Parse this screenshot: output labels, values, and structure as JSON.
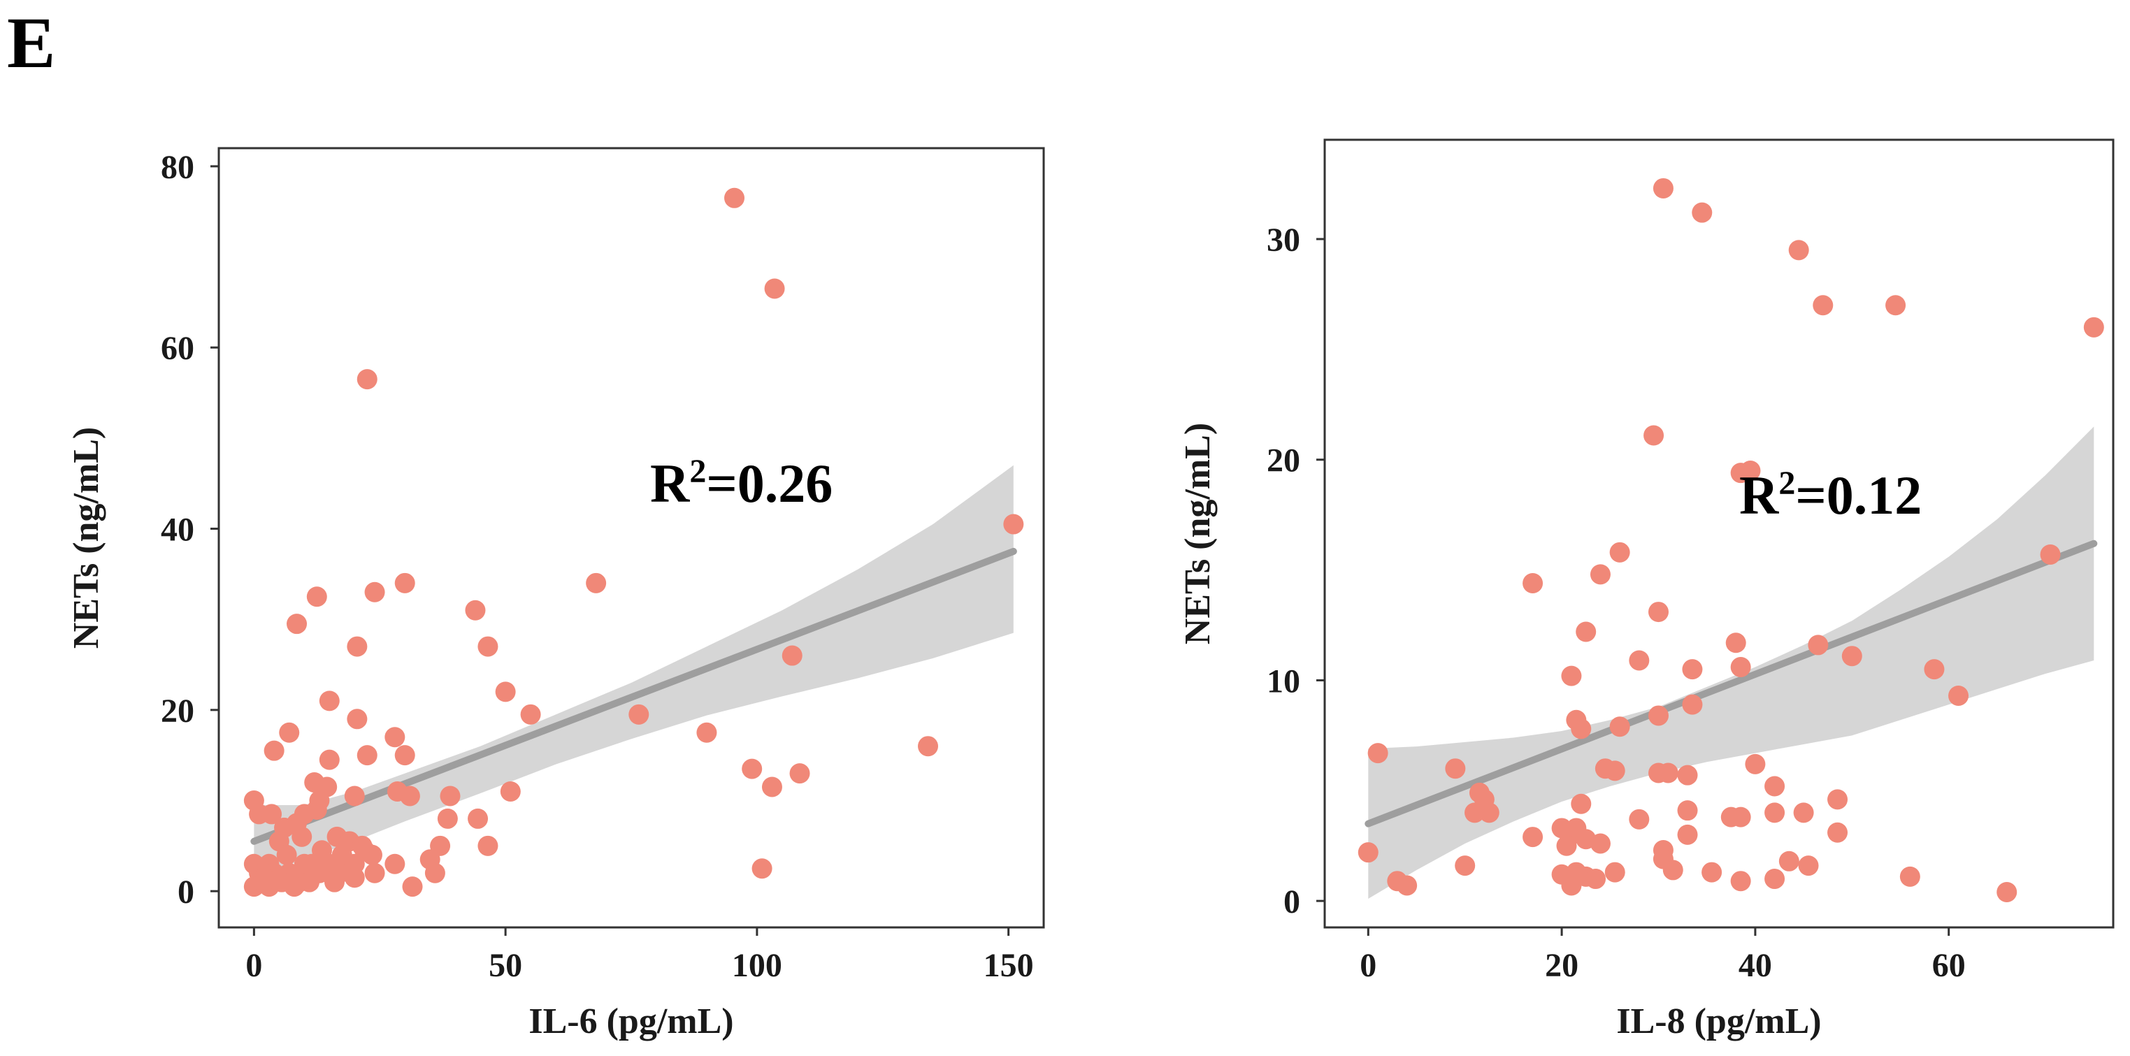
{
  "panel_label": "E",
  "colors": {
    "point": "#f08878",
    "fit": "#9e9e9e",
    "band": "#d6d6d6",
    "frame": "#333333"
  },
  "chart_data": [
    {
      "type": "scatter",
      "id": "il6",
      "title": "",
      "xlabel": "IL-6 (pg/mL)",
      "ylabel": "NETs (ng/mL)",
      "xlim": [
        -7,
        157
      ],
      "ylim": [
        -4,
        82
      ],
      "xticks": [
        0,
        50,
        100,
        150
      ],
      "yticks": [
        0,
        20,
        40,
        60,
        80
      ],
      "annotation": {
        "base": "R",
        "sup": "2",
        "rest": "=0.26"
      },
      "fit": {
        "x0": 0,
        "y0": 5.5,
        "x1": 151,
        "y1": 37.5
      },
      "band": {
        "x": [
          0,
          10,
          20,
          30,
          45,
          60,
          75,
          90,
          105,
          120,
          135,
          151
        ],
        "upper": [
          9.5,
          9.5,
          11,
          13,
          16,
          19.5,
          23,
          27,
          31,
          35.5,
          40.5,
          47
        ],
        "lower": [
          1.5,
          3.5,
          5.5,
          7.7,
          10.8,
          14,
          16.8,
          19.4,
          21.5,
          23.5,
          25.7,
          28.5
        ]
      },
      "points": [
        [
          95.5,
          76.5
        ],
        [
          103.5,
          66.5
        ],
        [
          22.5,
          56.5
        ],
        [
          151,
          40.5
        ],
        [
          68,
          34
        ],
        [
          30,
          34
        ],
        [
          12.5,
          32.5
        ],
        [
          24,
          33
        ],
        [
          44,
          31
        ],
        [
          8.5,
          29.5
        ],
        [
          20.5,
          27
        ],
        [
          46.5,
          27
        ],
        [
          107,
          26
        ],
        [
          15,
          21
        ],
        [
          50,
          22
        ],
        [
          20.5,
          19
        ],
        [
          55,
          19.5
        ],
        [
          76.5,
          19.5
        ],
        [
          90,
          17.5
        ],
        [
          7,
          17.5
        ],
        [
          4,
          15.5
        ],
        [
          28,
          17
        ],
        [
          22.5,
          15
        ],
        [
          30,
          15
        ],
        [
          15,
          14.5
        ],
        [
          134,
          16
        ],
        [
          99,
          13.5
        ],
        [
          108.5,
          13
        ],
        [
          103,
          11.5
        ],
        [
          12,
          12
        ],
        [
          14.5,
          11.5
        ],
        [
          51,
          11
        ],
        [
          39,
          10.5
        ],
        [
          31,
          10.5
        ],
        [
          20,
          10.5
        ],
        [
          0,
          10
        ],
        [
          13,
          10
        ],
        [
          28.5,
          11
        ],
        [
          38.5,
          8
        ],
        [
          44.5,
          8
        ],
        [
          1,
          8.5
        ],
        [
          3.5,
          8.5
        ],
        [
          10,
          8.5
        ],
        [
          12.5,
          9
        ],
        [
          8.5,
          7.5
        ],
        [
          16.5,
          6
        ],
        [
          9.5,
          6
        ],
        [
          5,
          5.5
        ],
        [
          19,
          5.5
        ],
        [
          21.5,
          5
        ],
        [
          46.5,
          5
        ],
        [
          37,
          5
        ],
        [
          13.5,
          4.5
        ],
        [
          17.5,
          4
        ],
        [
          22,
          4.5
        ],
        [
          23.5,
          4
        ],
        [
          6.5,
          4
        ],
        [
          0,
          3
        ],
        [
          3,
          3
        ],
        [
          10,
          3
        ],
        [
          11.5,
          3
        ],
        [
          15,
          3
        ],
        [
          20,
          3
        ],
        [
          28,
          3
        ],
        [
          35,
          3.5
        ],
        [
          101,
          2.5
        ],
        [
          1,
          2
        ],
        [
          4,
          2
        ],
        [
          7,
          2
        ],
        [
          13,
          2
        ],
        [
          17,
          2
        ],
        [
          20,
          1.5
        ],
        [
          24,
          2
        ],
        [
          36,
          2
        ],
        [
          2,
          1.5
        ],
        [
          5.5,
          1
        ],
        [
          9,
          1
        ],
        [
          11,
          1
        ],
        [
          16,
          1
        ],
        [
          0,
          0.5
        ],
        [
          3,
          0.5
        ],
        [
          8,
          0.5
        ],
        [
          31.5,
          0.5
        ],
        [
          6,
          7
        ],
        [
          2,
          1
        ]
      ]
    },
    {
      "type": "scatter",
      "id": "il8",
      "title": "",
      "xlabel": "IL-8 (pg/mL)",
      "ylabel": "NETs (ng/mL)",
      "xlim": [
        -4.5,
        77
      ],
      "ylim": [
        -1.2,
        34.5
      ],
      "xticks": [
        0,
        20,
        40,
        60
      ],
      "yticks": [
        0,
        10,
        20,
        30
      ],
      "annotation": {
        "base": "R",
        "sup": "2",
        "rest": "=0.12"
      },
      "fit": {
        "x0": 0,
        "y0": 3.5,
        "x1": 75,
        "y1": 16.2
      },
      "band": {
        "x": [
          0,
          5,
          10,
          15,
          20,
          25,
          30,
          35,
          40,
          45,
          50,
          55,
          60,
          65,
          70,
          75
        ],
        "upper": [
          6.9,
          7.0,
          7.2,
          7.4,
          7.7,
          8.2,
          8.8,
          9.7,
          10.6,
          11.6,
          12.7,
          14.1,
          15.6,
          17.3,
          19.3,
          21.5
        ],
        "lower": [
          0.1,
          1.4,
          2.6,
          3.6,
          4.5,
          5.2,
          5.8,
          6.3,
          6.7,
          7.1,
          7.5,
          8.2,
          8.9,
          9.6,
          10.3,
          10.9
        ]
      },
      "points": [
        [
          30.5,
          32.3
        ],
        [
          34.5,
          31.2
        ],
        [
          44.5,
          29.5
        ],
        [
          47,
          27
        ],
        [
          54.5,
          27
        ],
        [
          75,
          26
        ],
        [
          29.5,
          21.1
        ],
        [
          39.5,
          19.5
        ],
        [
          38.5,
          19.4
        ],
        [
          17,
          14.4
        ],
        [
          24,
          14.8
        ],
        [
          26,
          15.8
        ],
        [
          70.5,
          15.7
        ],
        [
          30,
          13.1
        ],
        [
          22.5,
          12.2
        ],
        [
          38,
          11.7
        ],
        [
          46.5,
          11.6
        ],
        [
          50,
          11.1
        ],
        [
          28,
          10.9
        ],
        [
          33.5,
          10.5
        ],
        [
          38.5,
          10.6
        ],
        [
          58.5,
          10.5
        ],
        [
          21,
          10.2
        ],
        [
          61,
          9.3
        ],
        [
          33.5,
          8.9
        ],
        [
          30,
          8.4
        ],
        [
          21.5,
          8.2
        ],
        [
          22,
          7.8
        ],
        [
          26,
          7.9
        ],
        [
          1,
          6.7
        ],
        [
          24.5,
          6.0
        ],
        [
          25.5,
          5.9
        ],
        [
          30,
          5.8
        ],
        [
          31,
          5.8
        ],
        [
          33,
          5.7
        ],
        [
          40,
          6.2
        ],
        [
          9,
          6
        ],
        [
          42,
          5.2
        ],
        [
          11.5,
          4.9
        ],
        [
          22,
          4.4
        ],
        [
          12,
          4.6
        ],
        [
          11,
          4.0
        ],
        [
          12.5,
          4.0
        ],
        [
          42,
          4.0
        ],
        [
          45,
          4.0
        ],
        [
          33,
          4.1
        ],
        [
          28,
          3.7
        ],
        [
          37.5,
          3.8
        ],
        [
          38.5,
          3.8
        ],
        [
          48.5,
          4.6
        ],
        [
          20,
          3.3
        ],
        [
          21,
          3.0
        ],
        [
          21.5,
          3.3
        ],
        [
          22.5,
          2.8
        ],
        [
          24,
          2.6
        ],
        [
          17,
          2.9
        ],
        [
          33,
          3.0
        ],
        [
          48.5,
          3.1
        ],
        [
          20.5,
          2.5
        ],
        [
          30.5,
          2.3
        ],
        [
          0,
          2.2
        ],
        [
          43.5,
          1.8
        ],
        [
          45.5,
          1.6
        ],
        [
          10,
          1.6
        ],
        [
          31.5,
          1.4
        ],
        [
          35.5,
          1.3
        ],
        [
          25.5,
          1.3
        ],
        [
          20,
          1.2
        ],
        [
          21.5,
          1.3
        ],
        [
          22.5,
          1.1
        ],
        [
          42,
          1.0
        ],
        [
          56,
          1.1
        ],
        [
          38.5,
          0.9
        ],
        [
          3,
          0.9
        ],
        [
          21,
          0.7
        ],
        [
          30.5,
          1.9
        ],
        [
          4,
          0.7
        ],
        [
          66,
          0.4
        ],
        [
          21,
          0.8
        ],
        [
          23.5,
          1.0
        ]
      ]
    }
  ]
}
